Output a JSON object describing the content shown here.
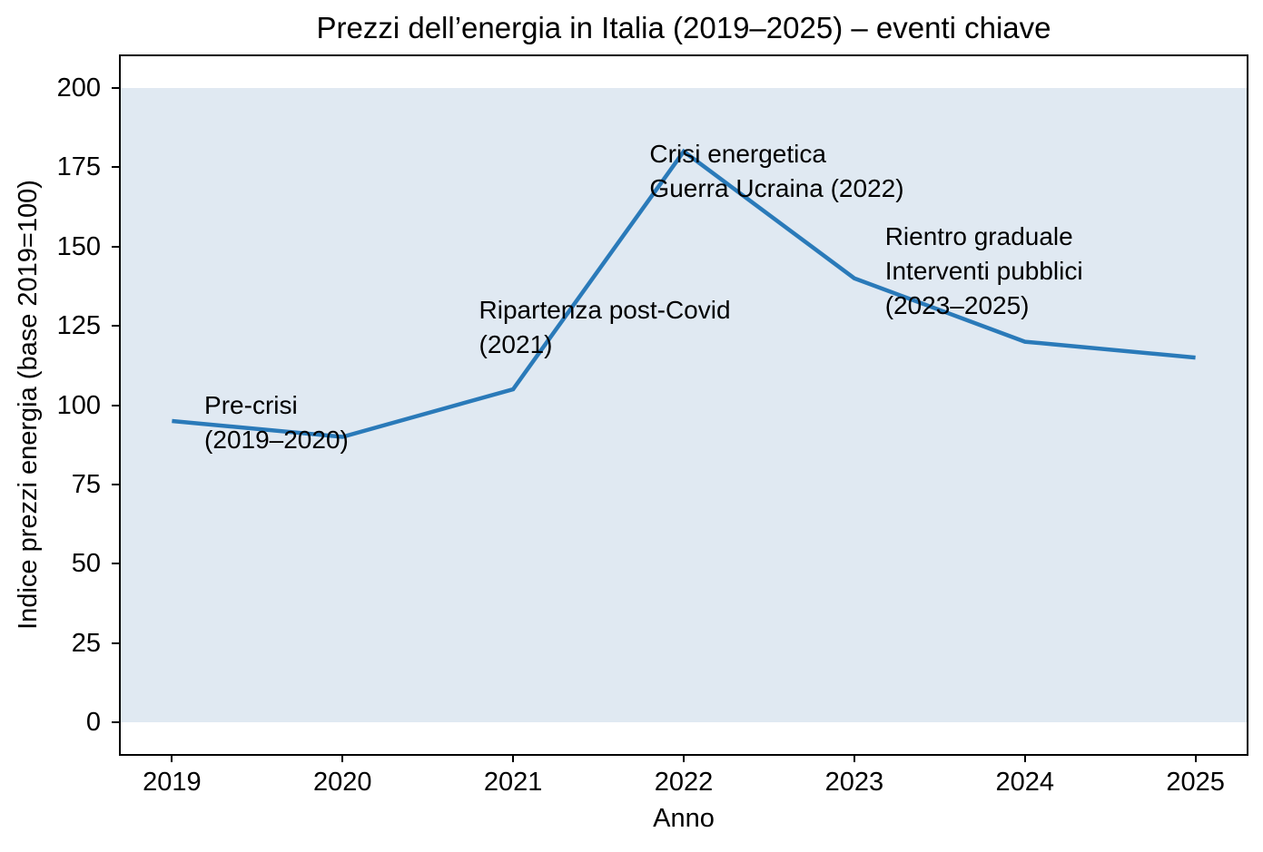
{
  "chart_data": {
    "type": "line",
    "title": "Prezzi dell’energia in Italia (2019–2025) – eventi chiave",
    "xlabel": "Anno",
    "ylabel": "Indice prezzi energia (base 2019=100)",
    "x": [
      2019,
      2020,
      2021,
      2022,
      2023,
      2024,
      2025
    ],
    "values": [
      95,
      90,
      105,
      180,
      140,
      120,
      115
    ],
    "xticks": [
      2019,
      2020,
      2021,
      2022,
      2023,
      2024,
      2025
    ],
    "yticks": [
      0,
      25,
      50,
      75,
      100,
      125,
      150,
      175,
      200
    ],
    "xlim": [
      2018.7,
      2025.3
    ],
    "ylim": [
      -10,
      210
    ],
    "grid": false,
    "legend": false,
    "line_color": "#2a7ab9",
    "line_width": 4.5,
    "band": {
      "from": 0,
      "to": 200,
      "color": "#e0e9f2"
    },
    "annotations": [
      {
        "id": "pre-crisi",
        "lines": [
          "Pre-crisi",
          "(2019–2020)"
        ],
        "x": 2019.19,
        "y": 102
      },
      {
        "id": "ripartenza-post-covid",
        "lines": [
          "Ripartenza post-Covid",
          "(2021)"
        ],
        "x": 2020.8,
        "y": 132
      },
      {
        "id": "crisi-energetica",
        "lines": [
          "Crisi energetica",
          "Guerra Ucraina (2022)"
        ],
        "x": 2021.8,
        "y": 181
      },
      {
        "id": "rientro-graduale",
        "lines": [
          "Rientro graduale",
          "Interventi pubblici",
          "(2023–2025)"
        ],
        "x": 2023.18,
        "y": 155
      }
    ]
  }
}
